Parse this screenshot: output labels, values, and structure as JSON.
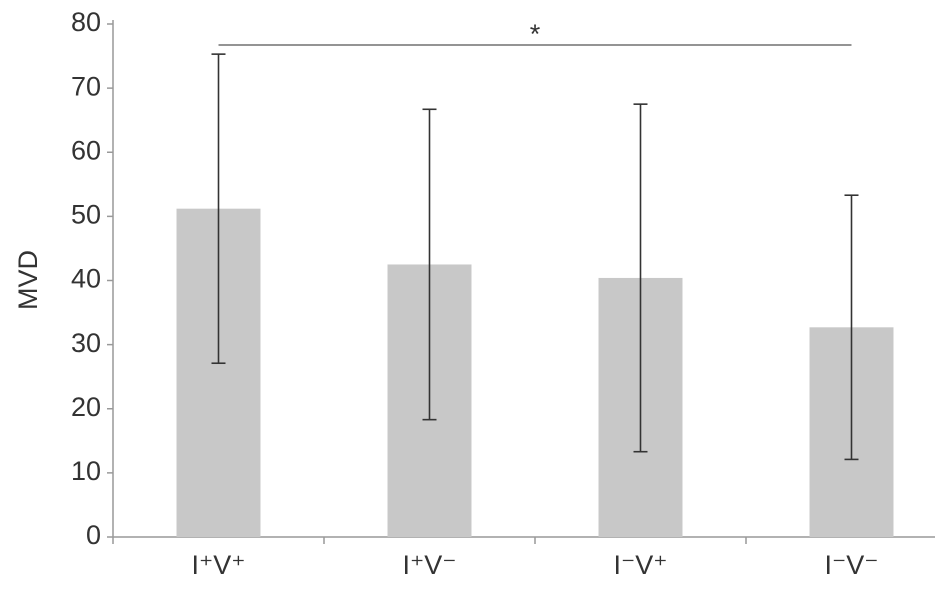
{
  "chart_data": {
    "type": "bar",
    "y_label": "MVD",
    "categories": [
      "I⁺V⁺",
      "I⁺V⁻",
      "I⁻V⁺",
      "I⁻V⁻"
    ],
    "values": [
      51.2,
      42.5,
      40.4,
      32.7
    ],
    "errors": [
      24.1,
      24.2,
      27.1,
      20.6
    ],
    "color": "#c8c8c8",
    "ylim": [
      0,
      80
    ],
    "yticks": [
      0,
      10,
      20,
      30,
      40,
      50,
      60,
      70,
      80
    ],
    "significance": "*"
  }
}
